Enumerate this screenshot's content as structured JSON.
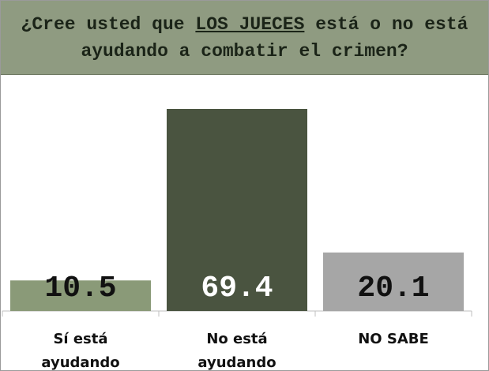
{
  "chart_data": {
    "type": "bar",
    "title": {
      "before": "¿Cree usted que",
      "emphasis": "LOS JUECES",
      "after": "está o no está ayudando a combatir el crimen?"
    },
    "categories": [
      "Sí está ayudando",
      "No está ayudando",
      "NO SABE"
    ],
    "values": [
      10.5,
      69.4,
      20.1
    ],
    "colors": [
      "#8a9a78",
      "#4a5440",
      "#a6a6a6"
    ]
  }
}
